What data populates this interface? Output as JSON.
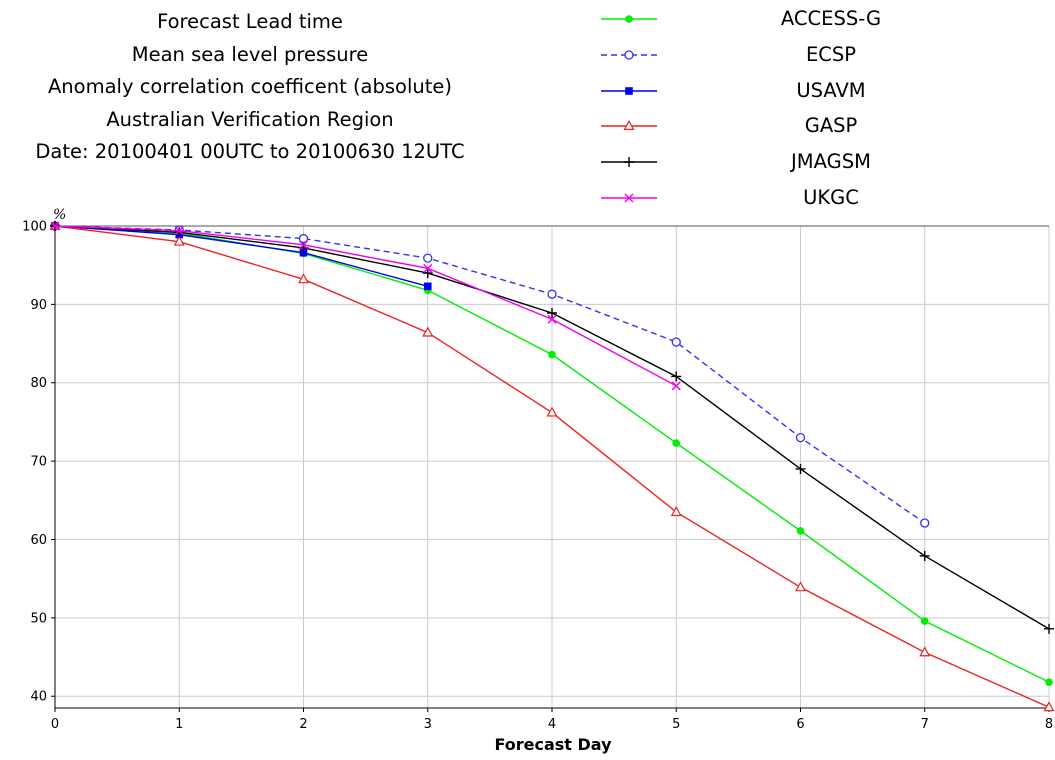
{
  "title_lines": [
    "Forecast Lead time",
    "Mean sea level pressure",
    "Anomaly correlation coefficent (absolute)",
    "Australian Verification Region",
    "Date: 20100401 00UTC to 20100630 12UTC"
  ],
  "chart_data": {
    "type": "line",
    "title": "Forecast Lead time",
    "xlabel": "Forecast Day",
    "ylabel": "%",
    "xlim": [
      0,
      8
    ],
    "ylim": [
      38.5,
      100
    ],
    "xticks": [
      0,
      1,
      2,
      3,
      4,
      5,
      6,
      7,
      8
    ],
    "yticks": [
      40,
      50,
      60,
      70,
      80,
      90,
      100
    ],
    "grid": true,
    "legend_position": "top-right",
    "series": [
      {
        "name": "ACCESS-G",
        "color": "#00ee00",
        "dash": "solid",
        "marker": "filled-circle",
        "x": [
          0,
          1,
          2,
          3,
          4,
          5,
          6,
          7,
          8
        ],
        "values": [
          100,
          99.1,
          96.5,
          91.8,
          83.6,
          72.3,
          61.1,
          49.6,
          41.8
        ]
      },
      {
        "name": "ECSP",
        "color": "#3333ee",
        "dash": "dashed",
        "marker": "open-circle",
        "x": [
          0,
          1,
          2,
          3,
          4,
          5,
          6,
          7
        ],
        "values": [
          100,
          99.5,
          98.4,
          95.9,
          91.3,
          85.2,
          73.0,
          62.1
        ]
      },
      {
        "name": "USAVM",
        "color": "#0000ee",
        "dash": "solid",
        "marker": "filled-square",
        "x": [
          0,
          1,
          2,
          3
        ],
        "values": [
          100,
          98.9,
          96.6,
          92.3
        ]
      },
      {
        "name": "GASP",
        "color": "#ee2222",
        "dash": "solid",
        "marker": "open-triangle",
        "x": [
          0,
          1,
          2,
          3,
          4,
          5,
          6,
          7,
          8
        ],
        "values": [
          100,
          98.0,
          93.2,
          86.4,
          76.2,
          63.5,
          53.9,
          45.6,
          38.6
        ]
      },
      {
        "name": "JMAGSM",
        "color": "#000000",
        "dash": "solid",
        "marker": "plus",
        "x": [
          0,
          1,
          2,
          3,
          4,
          5,
          6,
          7,
          8
        ],
        "values": [
          100,
          99.2,
          97.2,
          94.0,
          88.9,
          80.8,
          69.0,
          57.9,
          48.6
        ]
      },
      {
        "name": "UKGC",
        "color": "#ee00ee",
        "dash": "solid",
        "marker": "cross",
        "x": [
          0,
          1,
          2,
          3,
          4,
          5
        ],
        "values": [
          100,
          99.4,
          97.6,
          94.6,
          88.1,
          79.6
        ]
      }
    ]
  }
}
